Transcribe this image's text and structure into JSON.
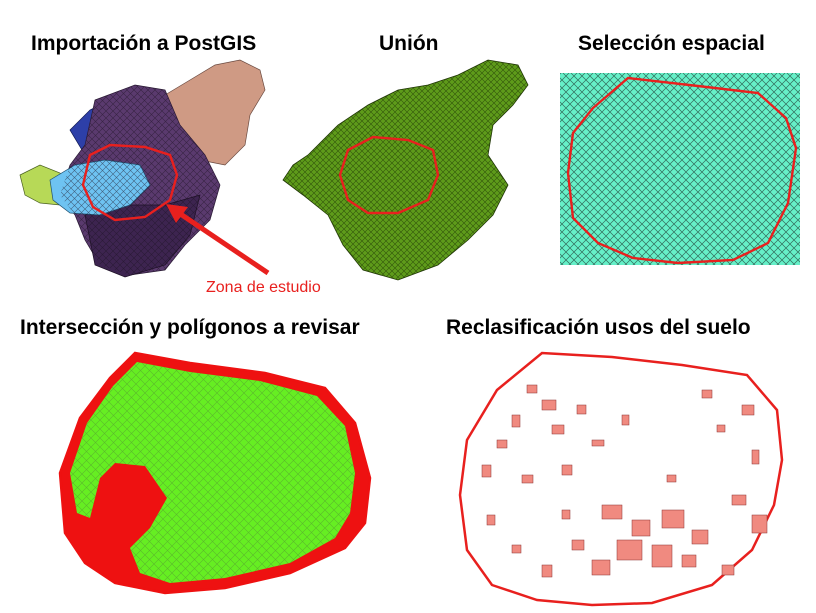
{
  "titles": {
    "import": "Importación a PostGIS",
    "union": "Unión",
    "selection": "Selección espacial",
    "intersection": "Intersección y polígonos a revisar",
    "reclass": "Reclasificación usos del suelo"
  },
  "annotation": "Zona de estudio",
  "colors": {
    "boundary": "#e8201e",
    "purple": "#5a3a6e",
    "dark_purple": "#3d2450",
    "blue": "#2d3fa8",
    "light_blue": "#6ec3f2",
    "salmon": "#cf9a84",
    "yellow_green": "#b7d957",
    "olive_green": "#5e9b1a",
    "aqua": "#66f0c8",
    "bright_green": "#66ee22",
    "red": "#ee1111",
    "reclass_fill": "#f08a80"
  }
}
